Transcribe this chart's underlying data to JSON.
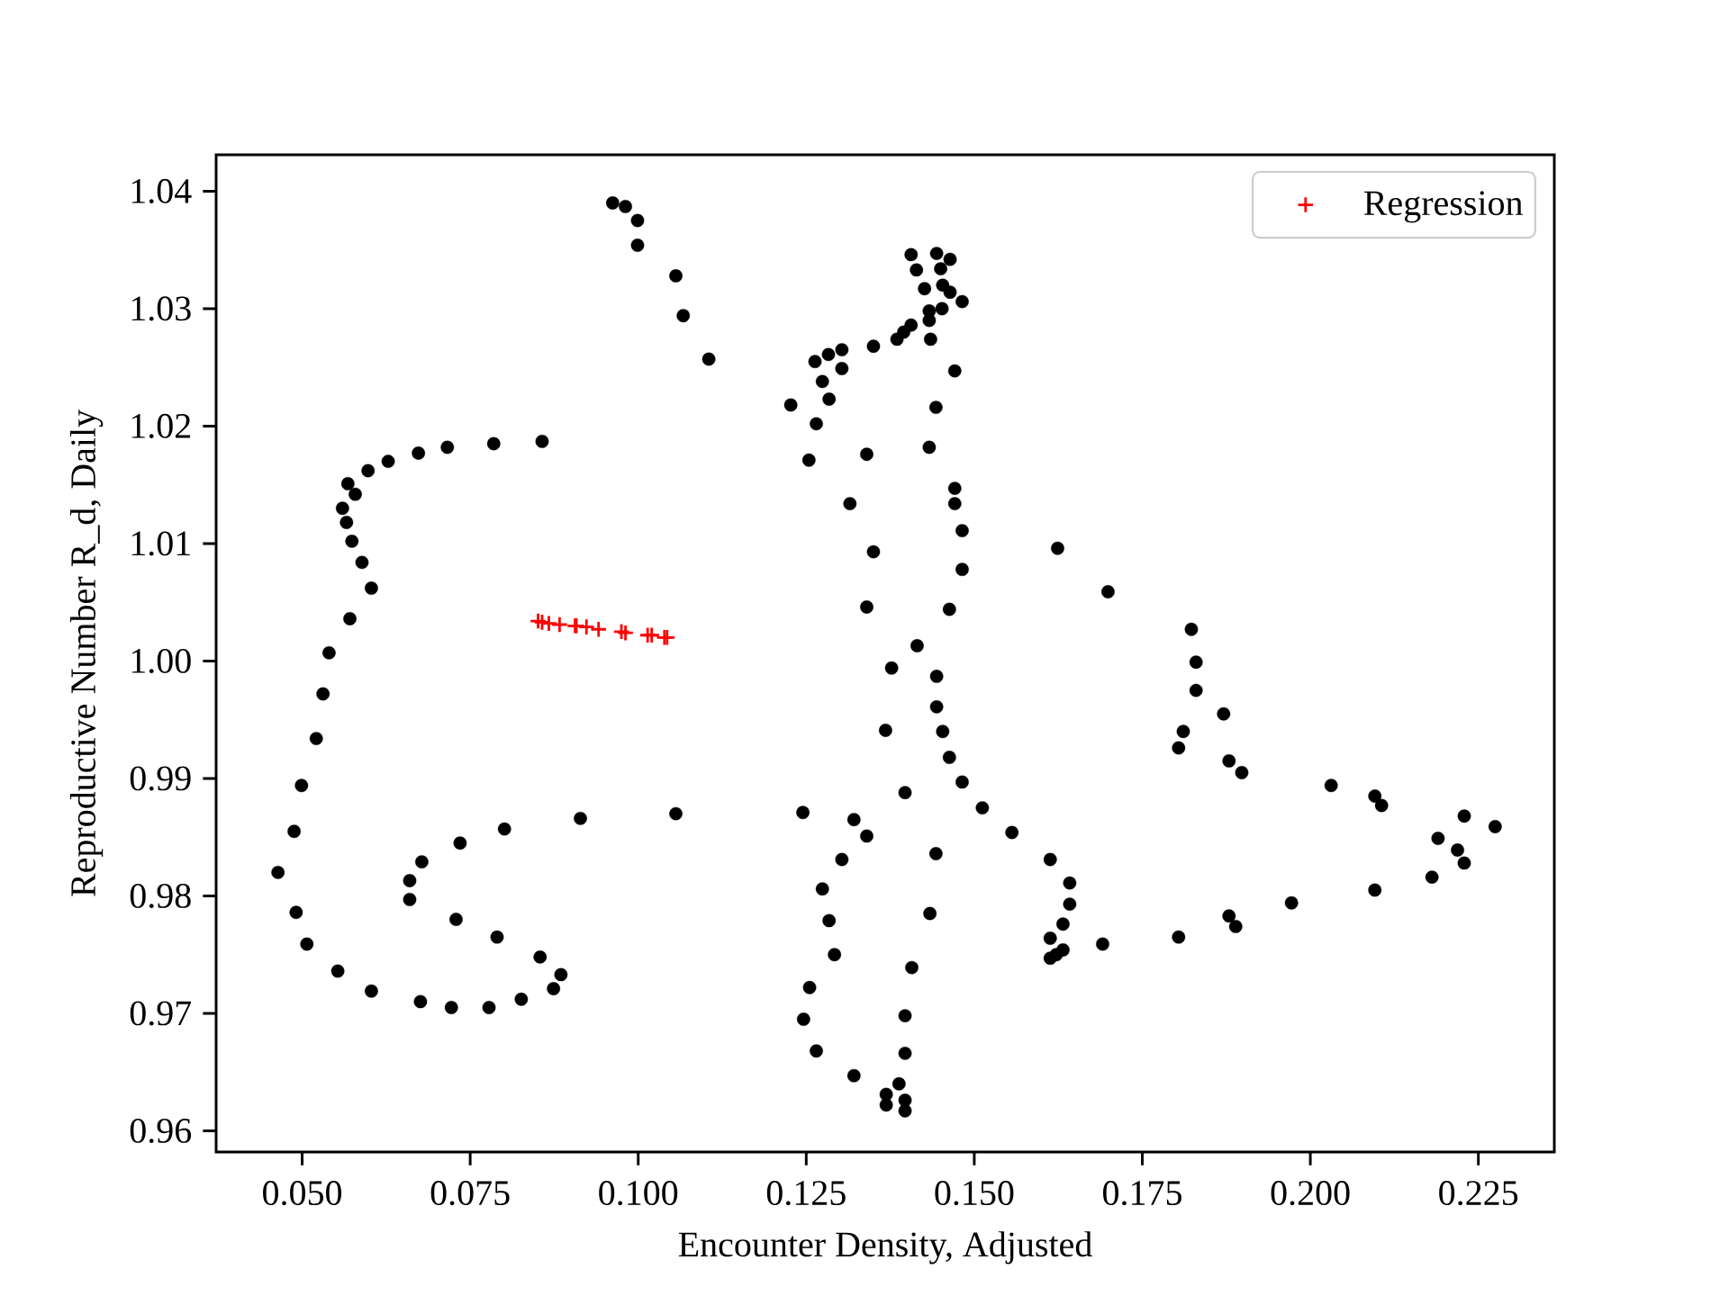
{
  "chart_data": {
    "type": "scatter",
    "xlabel": "Encounter Density, Adjusted",
    "ylabel": "Reproductive Number R_d, Daily",
    "xlim": [
      0.0372,
      0.2363
    ],
    "ylim": [
      0.9582,
      1.0431
    ],
    "xticks": [
      {
        "value": 0.05,
        "label": "0.050"
      },
      {
        "value": 0.075,
        "label": "0.075"
      },
      {
        "value": 0.1,
        "label": "0.100"
      },
      {
        "value": 0.125,
        "label": "0.125"
      },
      {
        "value": 0.15,
        "label": "0.150"
      },
      {
        "value": 0.175,
        "label": "0.175"
      },
      {
        "value": 0.2,
        "label": "0.200"
      },
      {
        "value": 0.225,
        "label": "0.225"
      }
    ],
    "yticks": [
      0.96,
      0.97,
      0.98,
      0.99,
      {
        "value": 1.0,
        "label": "1.00"
      },
      1.01,
      1.02,
      1.03,
      1.04
    ],
    "legend": "top right",
    "series": [
      {
        "color": "#000000",
        "marker": "circle",
        "x": [
          0.0857,
          0.0785,
          0.0716,
          0.0673,
          0.0628,
          0.0598,
          0.0568,
          0.0579,
          0.056,
          0.0566,
          0.0574,
          0.0589,
          0.0603,
          0.0571,
          0.054,
          0.0531,
          0.0521,
          0.0499,
          0.0488,
          0.0464,
          0.0491,
          0.0507,
          0.0553,
          0.0603,
          0.0676,
          0.0722,
          0.0778,
          0.0826,
          0.0874,
          0.0885,
          0.0854,
          0.079,
          0.0729,
          0.066,
          0.066,
          0.0678,
          0.0735,
          0.0801,
          0.0914,
          0.1056,
          0.0962,
          0.0981,
          0.0999,
          0.0999,
          0.1056,
          0.1067,
          0.1105,
          0.1406,
          0.1444,
          0.1464,
          0.1414,
          0.145,
          0.1453,
          0.1426,
          0.1464,
          0.1482,
          0.1452,
          0.1433,
          0.1433,
          0.1406,
          0.1395,
          0.1385,
          0.1435,
          0.135,
          0.1303,
          0.1283,
          0.1263,
          0.1303,
          0.1471,
          0.1274,
          0.1284,
          0.1227,
          0.1443,
          0.1265,
          0.1433,
          0.134,
          0.1254,
          0.1471,
          0.1471,
          0.1315,
          0.1482,
          0.135,
          0.1482,
          0.134,
          0.1463,
          0.1415,
          0.1377,
          0.1444,
          0.1444,
          0.1368,
          0.1453,
          0.1463,
          0.1482,
          0.1397,
          0.1512,
          0.1245,
          0.1321,
          0.134,
          0.1556,
          0.1443,
          0.1303,
          0.1274,
          0.1434,
          0.1284,
          0.1292,
          0.1407,
          0.1255,
          0.1246,
          0.1397,
          0.1265,
          0.1397,
          0.1321,
          0.1388,
          0.1369,
          0.1397,
          0.1369,
          0.1397,
          0.1624,
          0.1699,
          0.1823,
          0.183,
          0.183,
          0.1871,
          0.1811,
          0.1804,
          0.1879,
          0.1898,
          0.1613,
          0.1642,
          0.1642,
          0.1632,
          0.1613,
          0.1632,
          0.1622,
          0.1613,
          0.1691,
          0.1804,
          0.1879,
          0.1889,
          0.2031,
          0.2096,
          0.2106,
          0.2229,
          0.2275,
          0.219,
          0.2219,
          0.2229,
          0.2181,
          0.2096,
          0.1972
        ],
        "values": [
          1.0187,
          1.0185,
          1.0182,
          1.0177,
          1.017,
          1.0162,
          1.0151,
          1.0142,
          1.013,
          1.0118,
          1.0102,
          1.0084,
          1.0062,
          1.0036,
          1.0007,
          0.9972,
          0.9934,
          0.9894,
          0.9855,
          0.982,
          0.9786,
          0.9759,
          0.9736,
          0.9719,
          0.971,
          0.9705,
          0.9705,
          0.9712,
          0.9721,
          0.9733,
          0.9748,
          0.9765,
          0.978,
          0.9797,
          0.9813,
          0.9829,
          0.9845,
          0.9857,
          0.9866,
          0.987,
          1.039,
          1.0387,
          1.0375,
          1.0354,
          1.0328,
          1.0294,
          1.0257,
          1.0346,
          1.0347,
          1.0342,
          1.0333,
          1.0334,
          1.032,
          1.0317,
          1.0314,
          1.0306,
          1.03,
          1.0298,
          1.029,
          1.0286,
          1.028,
          1.0274,
          1.0274,
          1.0268,
          1.0265,
          1.0261,
          1.0255,
          1.0249,
          1.0247,
          1.0238,
          1.0223,
          1.0218,
          1.0216,
          1.0202,
          1.0182,
          1.0176,
          1.0171,
          1.0147,
          1.0134,
          1.0134,
          1.0111,
          1.0093,
          1.0078,
          1.0046,
          1.0044,
          1.0013,
          0.9994,
          0.9987,
          0.9961,
          0.9941,
          0.994,
          0.9918,
          0.9897,
          0.9888,
          0.9875,
          0.9871,
          0.9865,
          0.9851,
          0.9854,
          0.9836,
          0.9831,
          0.9806,
          0.9785,
          0.9779,
          0.975,
          0.9739,
          0.9722,
          0.9695,
          0.9698,
          0.9668,
          0.9666,
          0.9647,
          0.964,
          0.9631,
          0.9626,
          0.9622,
          0.9617,
          1.0096,
          1.0059,
          1.0027,
          0.9999,
          0.9975,
          0.9955,
          0.994,
          0.9926,
          0.9915,
          0.9905,
          0.9831,
          0.9811,
          0.9793,
          0.9776,
          0.9764,
          0.9754,
          0.975,
          0.9747,
          0.9759,
          0.9765,
          0.9783,
          0.9774,
          0.9894,
          0.9885,
          0.9877,
          0.9868,
          0.9859,
          0.9849,
          0.9839,
          0.9828,
          0.9816,
          0.9805,
          0.9794
        ]
      },
      {
        "name": "Regression",
        "color": "#ff0000",
        "marker": "cross",
        "x": [
          0.0851,
          0.0857,
          0.0867,
          0.0883,
          0.0906,
          0.0908,
          0.0923,
          0.0941,
          0.0975,
          0.0981,
          0.1014,
          0.102,
          0.1039,
          0.1043
        ],
        "values": [
          1.0034,
          1.0033,
          1.0032,
          1.0031,
          1.003,
          1.003,
          1.0029,
          1.0027,
          1.0025,
          1.0024,
          1.0022,
          1.0022,
          1.002,
          1.002
        ]
      }
    ]
  }
}
